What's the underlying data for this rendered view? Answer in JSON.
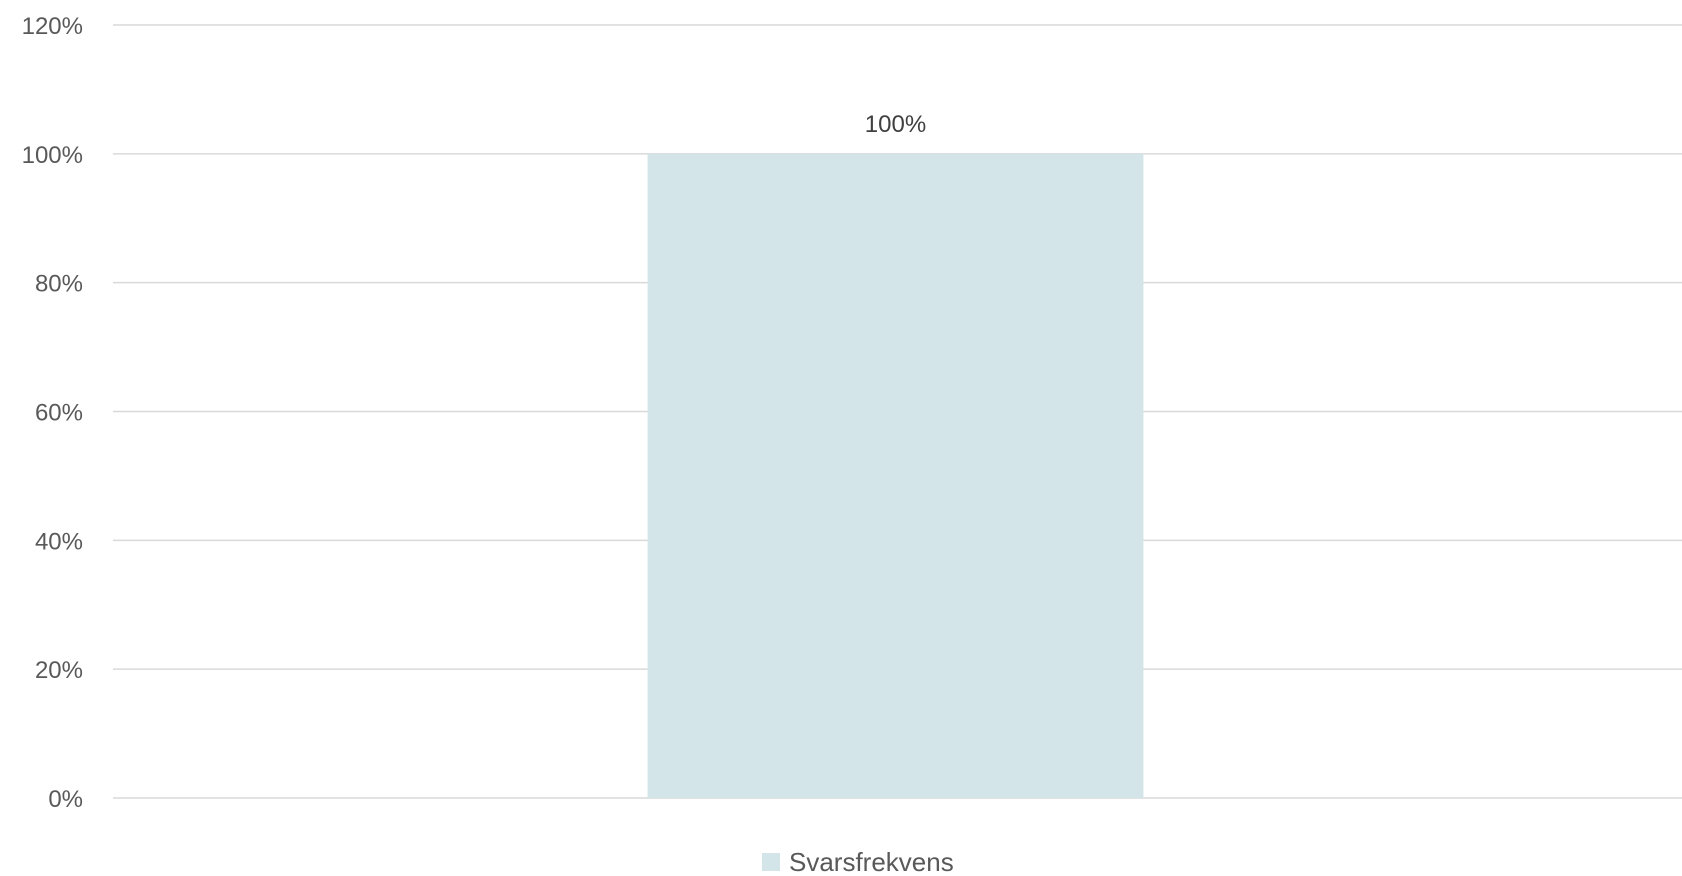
{
  "chart_data": {
    "type": "bar",
    "categories": [
      ""
    ],
    "series": [
      {
        "name": "Svarsfrekvens",
        "values": [
          100
        ],
        "color": "#d3e5e8"
      }
    ],
    "data_labels": [
      "100%"
    ],
    "y_ticks": [
      "0%",
      "20%",
      "40%",
      "60%",
      "80%",
      "100%",
      "120%"
    ],
    "ylim": [
      0,
      120
    ],
    "y_unit": "%",
    "grid": true,
    "legend_position": "bottom"
  }
}
